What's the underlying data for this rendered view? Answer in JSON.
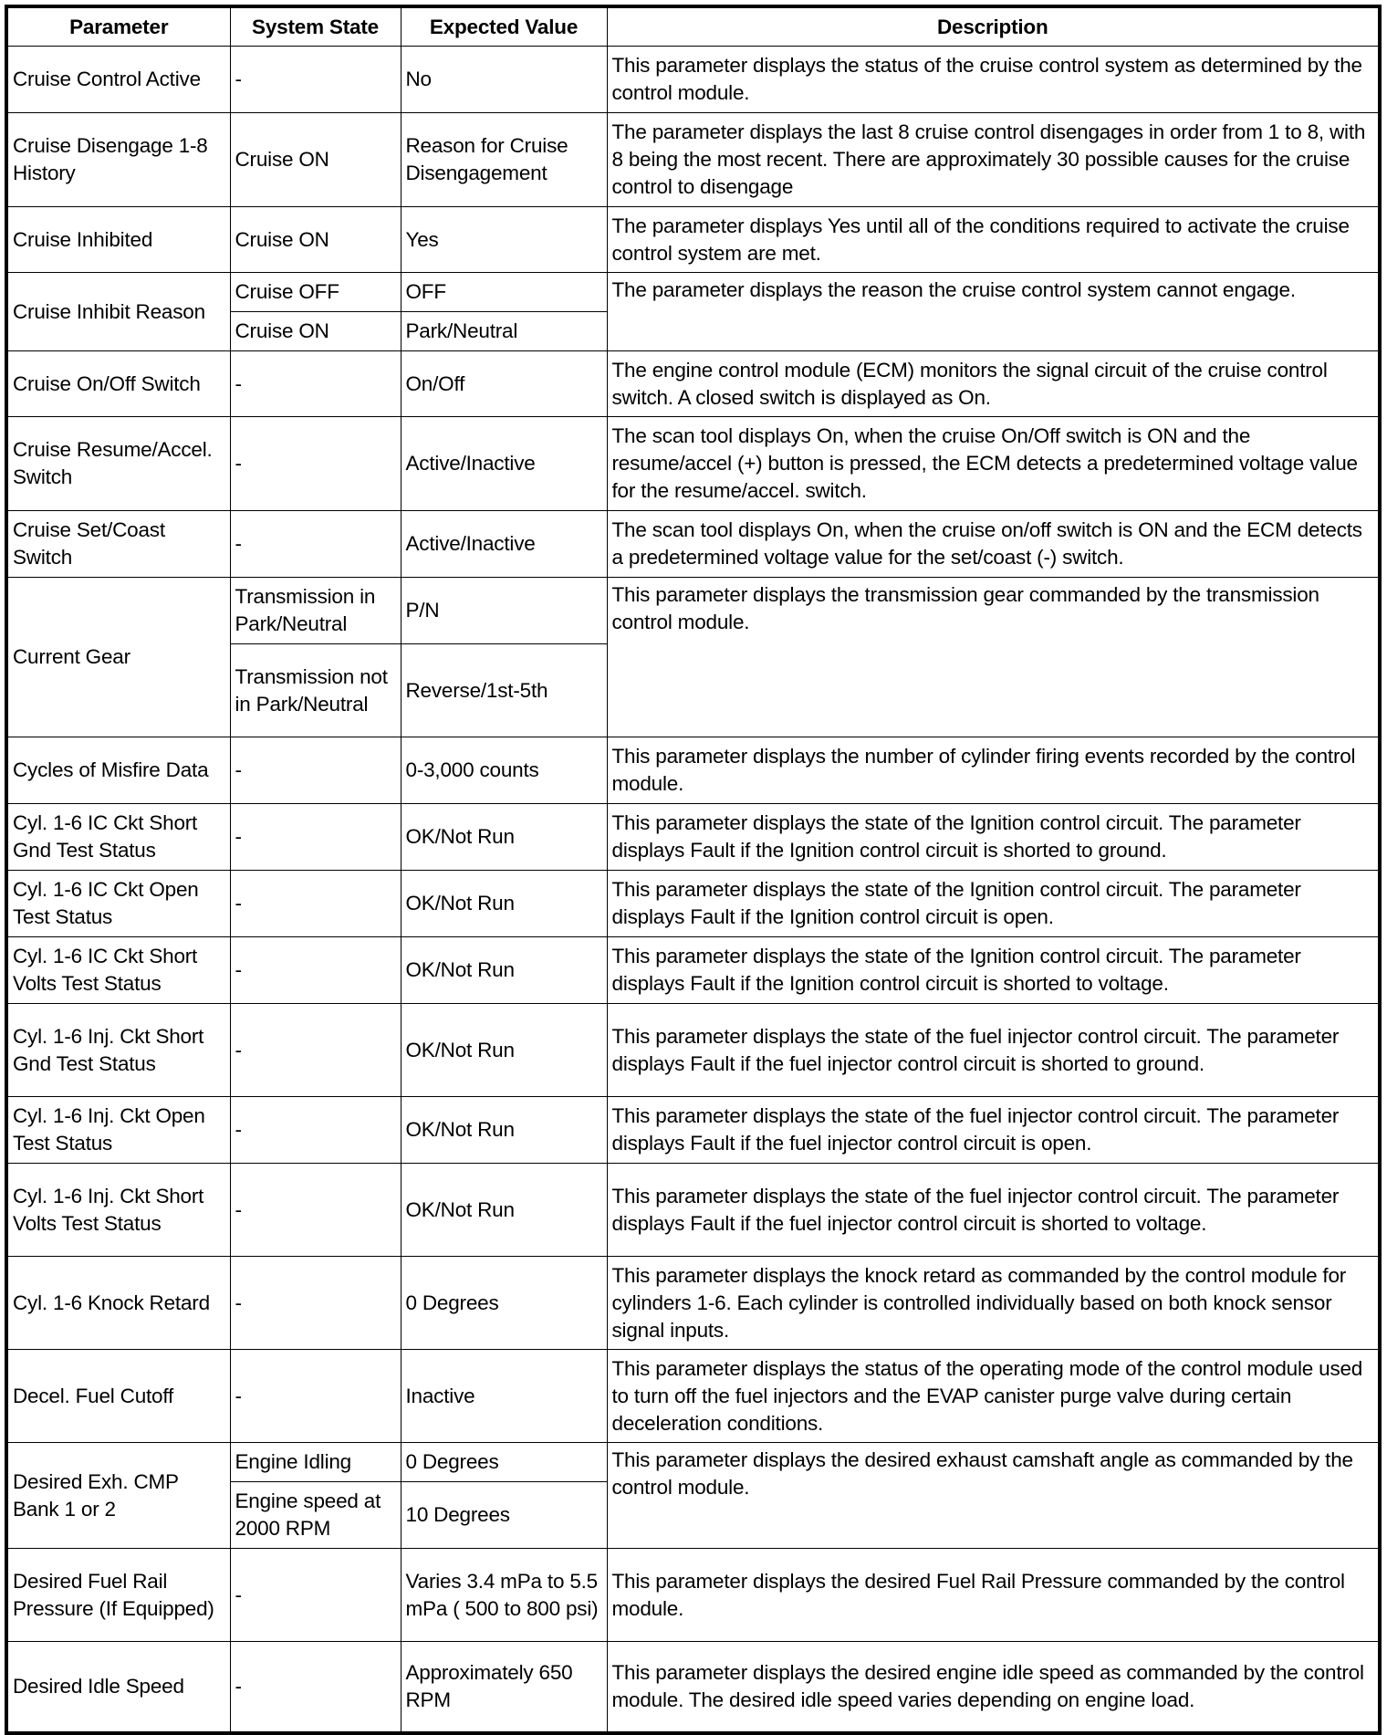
{
  "headers": [
    "Parameter",
    "System State",
    "Expected Value",
    "Description"
  ],
  "rows": [
    {
      "parameter": "Cruise Control Active",
      "states": [
        {
          "state": "-",
          "value": "No",
          "h": 73
        }
      ],
      "description": "This parameter displays the status of the cruise control system as determined by the control module."
    },
    {
      "parameter": "Cruise Disengage 1-8 History",
      "states": [
        {
          "state": "Cruise ON",
          "value": "Reason for Cruise Disengagement",
          "h": 103
        }
      ],
      "description": "The parameter displays the last 8 cruise control disengages in order from 1 to 8, with 8 being the most recent. There are approximately 30 possible causes for the cruise control to disengage"
    },
    {
      "parameter": "Cruise Inhibited",
      "states": [
        {
          "state": "Cruise ON",
          "value": "Yes",
          "h": 72
        }
      ],
      "description": "The parameter displays Yes until all of the conditions required to activate the cruise control system are met."
    },
    {
      "parameter": "Cruise Inhibit Reason",
      "states": [
        {
          "state": "Cruise OFF",
          "value": "OFF",
          "h": 43
        },
        {
          "state": "Cruise ON",
          "value": "Park/Neutral",
          "h": 43
        }
      ],
      "description": "The parameter displays the reason the cruise control system cannot engage."
    },
    {
      "parameter": "Cruise On/Off Switch",
      "states": [
        {
          "state": "-",
          "value": "On/Off",
          "h": 72
        }
      ],
      "description": "The engine control module (ECM) monitors the signal circuit of the cruise control switch. A closed switch is displayed as On."
    },
    {
      "parameter": "Cruise Resume/Accel. Switch",
      "states": [
        {
          "state": "-",
          "value": "Active/Inactive",
          "h": 103
        }
      ],
      "description": "The scan tool displays On, when the cruise On/Off switch is ON and the resume/accel (+) button is pressed, the ECM detects a predetermined voltage value for the resume/accel. switch."
    },
    {
      "parameter": "Cruise Set/Coast Switch",
      "states": [
        {
          "state": "-",
          "value": "Active/Inactive",
          "h": 73
        }
      ],
      "description": "The scan tool displays On, when the cruise on/off switch is ON and the ECM detects a predetermined voltage value for the set/coast (-) switch."
    },
    {
      "parameter": "Current Gear",
      "states": [
        {
          "state": "Transmission in Park/Neutral",
          "value": "P/N",
          "h": 73
        },
        {
          "state": "Transmission not in Park/Neutral",
          "value": "Reverse/1st-5th",
          "h": 102
        }
      ],
      "description": "This parameter displays the transmission gear commanded by the transmission control module."
    },
    {
      "parameter": "Cycles of Misfire Data",
      "states": [
        {
          "state": "-",
          "value": "0-3,000 counts",
          "h": 73
        }
      ],
      "description": "This parameter displays the number of cylinder firing events recorded by the control module."
    },
    {
      "parameter": "Cyl. 1-6 IC Ckt Short Gnd Test Status",
      "states": [
        {
          "state": "-",
          "value": "OK/Not Run",
          "h": 73
        }
      ],
      "description": "This parameter displays the state of the Ignition control circuit. The parameter displays Fault if the Ignition control circuit is shorted to ground."
    },
    {
      "parameter": "Cyl. 1-6 IC Ckt Open Test Status",
      "states": [
        {
          "state": "-",
          "value": "OK/Not Run",
          "h": 73
        }
      ],
      "description": "This parameter displays the state of the Ignition control circuit. The parameter displays Fault if the Ignition control circuit is open."
    },
    {
      "parameter": "Cyl. 1-6 IC Ckt Short Volts Test Status",
      "states": [
        {
          "state": "-",
          "value": "OK/Not Run",
          "h": 73
        }
      ],
      "description": "This parameter displays the state of the Ignition control circuit. The parameter displays Fault if the Ignition control circuit is shorted to voltage."
    },
    {
      "parameter": "Cyl. 1-6 Inj. Ckt Short Gnd Test Status",
      "states": [
        {
          "state": "-",
          "value": "OK/Not Run",
          "h": 102
        }
      ],
      "description": "This parameter displays the state of the fuel injector control circuit. The parameter displays Fault if the fuel injector control circuit is shorted to ground."
    },
    {
      "parameter": "Cyl. 1-6 Inj. Ckt Open Test Status",
      "states": [
        {
          "state": "-",
          "value": "OK/Not Run",
          "h": 73
        }
      ],
      "description": "This parameter displays the state of the fuel injector control circuit. The parameter displays Fault if the fuel injector control circuit is open."
    },
    {
      "parameter": "Cyl. 1-6 Inj. Ckt Short Volts Test Status",
      "states": [
        {
          "state": "-",
          "value": "OK/Not Run",
          "h": 102
        }
      ],
      "description": "This parameter displays the state of the fuel injector control circuit. The parameter displays Fault if the fuel injector control circuit is shorted to voltage."
    },
    {
      "parameter": "Cyl. 1-6 Knock Retard",
      "states": [
        {
          "state": "-",
          "value": "0 Degrees",
          "h": 102
        }
      ],
      "description": "This parameter displays the knock retard as commanded by the control module for cylinders 1-6. Each cylinder is controlled individually based on both knock sensor signal inputs."
    },
    {
      "parameter": "Decel. Fuel Cutoff",
      "states": [
        {
          "state": "-",
          "value": "Inactive",
          "h": 102
        }
      ],
      "description": "This parameter displays the status of the operating mode of the control module used to turn off the fuel injectors and the EVAP canister purge valve during certain deceleration conditions."
    },
    {
      "parameter": "Desired Exh. CMP Bank 1 or 2",
      "states": [
        {
          "state": "Engine Idling",
          "value": "0 Degrees",
          "h": 43
        },
        {
          "state": "Engine speed at 2000 RPM",
          "value": "10 Degrees",
          "h": 73
        }
      ],
      "description": "This parameter displays the desired exhaust camshaft angle as commanded by the control module."
    },
    {
      "parameter": "Desired Fuel Rail Pressure (If Equipped)",
      "states": [
        {
          "state": "-",
          "value": "Varies 3.4 mPa to 5.5 mPa ( 500 to 800 psi)",
          "h": 102
        }
      ],
      "description": "This parameter displays the desired Fuel Rail Pressure commanded by the control module."
    },
    {
      "parameter": "Desired Idle Speed",
      "states": [
        {
          "state": "-",
          "value": "Approximately 650 RPM",
          "h": 100
        }
      ],
      "description": "This parameter displays the desired engine idle speed as commanded by the control module. The desired idle speed varies depending on engine load."
    }
  ]
}
